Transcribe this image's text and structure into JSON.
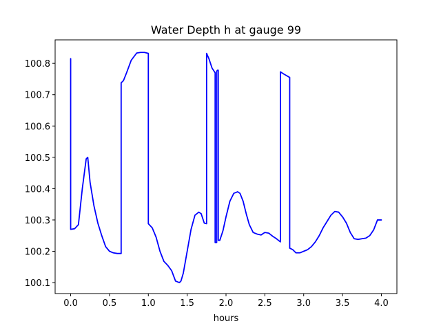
{
  "chart_data": {
    "type": "line",
    "title": "Water Depth h at gauge 99",
    "xlabel": "hours",
    "ylabel": "",
    "xlim": [
      -0.2,
      4.2
    ],
    "ylim": [
      100.065,
      100.875
    ],
    "xticks": [
      0.0,
      0.5,
      1.0,
      1.5,
      2.0,
      2.5,
      3.0,
      3.5,
      4.0
    ],
    "xtick_labels": [
      "0.0",
      "0.5",
      "1.0",
      "1.5",
      "2.0",
      "2.5",
      "3.0",
      "3.5",
      "4.0"
    ],
    "yticks": [
      100.1,
      100.2,
      100.3,
      100.4,
      100.5,
      100.6,
      100.7,
      100.8
    ],
    "ytick_labels": [
      "100.1",
      "100.2",
      "100.3",
      "100.4",
      "100.5",
      "100.6",
      "100.7",
      "100.8"
    ],
    "grid": false,
    "series": [
      {
        "color": "#0000ff",
        "x": [
          0.0,
          0.0,
          0.05,
          0.1,
          0.15,
          0.2,
          0.22,
          0.25,
          0.3,
          0.35,
          0.4,
          0.45,
          0.5,
          0.55,
          0.6,
          0.65,
          0.65,
          0.68,
          0.72,
          0.78,
          0.85,
          0.9,
          0.95,
          1.0,
          1.0,
          1.05,
          1.1,
          1.15,
          1.2,
          1.25,
          1.3,
          1.35,
          1.4,
          1.42,
          1.45,
          1.5,
          1.55,
          1.6,
          1.65,
          1.68,
          1.72,
          1.75,
          1.75,
          1.78,
          1.82,
          1.86,
          1.86,
          1.88,
          1.88,
          1.89,
          1.9,
          1.9,
          1.92,
          1.96,
          2.0,
          2.05,
          2.1,
          2.15,
          2.18,
          2.22,
          2.26,
          2.3,
          2.35,
          2.4,
          2.45,
          2.5,
          2.55,
          2.6,
          2.65,
          2.7,
          2.7,
          2.75,
          2.8,
          2.82,
          2.82,
          2.86,
          2.9,
          2.95,
          3.0,
          3.05,
          3.1,
          3.15,
          3.2,
          3.25,
          3.3,
          3.35,
          3.4,
          3.45,
          3.5,
          3.55,
          3.6,
          3.65,
          3.7,
          3.75,
          3.8,
          3.85,
          3.9,
          3.95,
          4.0
        ],
        "y": [
          100.815,
          100.27,
          100.272,
          100.285,
          100.4,
          100.495,
          100.5,
          100.42,
          100.345,
          100.29,
          100.25,
          100.215,
          100.2,
          100.195,
          100.193,
          100.193,
          100.738,
          100.745,
          100.77,
          100.81,
          100.833,
          100.835,
          100.835,
          100.832,
          100.288,
          100.275,
          100.245,
          100.2,
          100.168,
          100.155,
          100.138,
          100.105,
          100.1,
          100.105,
          100.13,
          100.2,
          100.27,
          100.315,
          100.325,
          100.32,
          100.29,
          100.288,
          100.832,
          100.815,
          100.785,
          100.77,
          100.228,
          100.228,
          100.775,
          100.778,
          100.778,
          100.235,
          100.235,
          100.265,
          100.31,
          100.36,
          100.385,
          100.39,
          100.385,
          100.36,
          100.32,
          100.285,
          100.26,
          100.255,
          100.252,
          100.26,
          100.258,
          100.248,
          100.24,
          100.23,
          100.773,
          100.765,
          100.758,
          100.755,
          100.21,
          100.205,
          100.195,
          100.195,
          100.2,
          100.205,
          100.215,
          100.23,
          100.25,
          100.275,
          100.295,
          100.315,
          100.327,
          100.325,
          100.31,
          100.29,
          100.26,
          100.24,
          100.238,
          100.24,
          100.242,
          100.25,
          100.268,
          100.3,
          100.3
        ]
      }
    ]
  }
}
